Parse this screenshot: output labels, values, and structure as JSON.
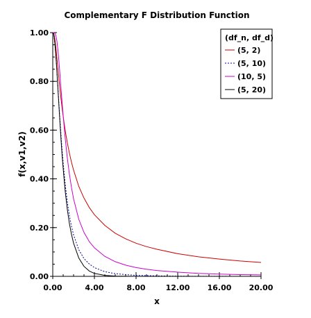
{
  "chart_data": {
    "type": "line",
    "title": "Complementary F Distribution Function",
    "xlabel": "x",
    "ylabel": "f(x,v1,v2)",
    "xlim": [
      0,
      20
    ],
    "ylim": [
      0,
      1
    ],
    "x_ticks": [
      0,
      4,
      8,
      12,
      16,
      20
    ],
    "x_tick_labels": [
      "0.00",
      "4.00",
      "8.00",
      "12.00",
      "16.00",
      "20.00"
    ],
    "y_ticks": [
      0,
      0.2,
      0.4,
      0.6,
      0.8,
      1.0
    ],
    "y_tick_labels": [
      "0.00",
      "0.20",
      "0.40",
      "0.60",
      "0.80",
      "1.00"
    ],
    "grid": false,
    "legend": {
      "title": "(df_n, df_d)",
      "placement": "top-right"
    },
    "series": [
      {
        "name": "(5, 2)",
        "color": "#cc0000",
        "dash": "solid",
        "x": [
          0,
          0.1,
          0.2,
          0.3,
          0.4,
          0.5,
          0.6,
          0.7,
          0.8,
          0.9,
          1.0,
          1.2,
          1.4,
          1.6,
          1.8,
          2.0,
          2.5,
          3.0,
          3.5,
          4.0,
          5.0,
          6.0,
          7.0,
          8.0,
          9.0,
          10.0,
          12.0,
          14.0,
          16.0,
          18.0,
          20.0
        ],
        "values": [
          1.0,
          0.996,
          0.974,
          0.938,
          0.895,
          0.85,
          0.806,
          0.765,
          0.726,
          0.69,
          0.656,
          0.597,
          0.548,
          0.505,
          0.468,
          0.436,
          0.369,
          0.321,
          0.283,
          0.253,
          0.209,
          0.177,
          0.154,
          0.136,
          0.122,
          0.111,
          0.093,
          0.08,
          0.071,
          0.063,
          0.057
        ]
      },
      {
        "name": "(5, 10)",
        "color": "#000099",
        "dash": "dotted",
        "x": [
          0,
          0.1,
          0.2,
          0.3,
          0.4,
          0.5,
          0.6,
          0.7,
          0.8,
          0.9,
          1.0,
          1.2,
          1.4,
          1.6,
          1.8,
          2.0,
          2.5,
          3.0,
          3.5,
          4.0,
          5.0,
          6.0,
          7.0,
          8.0,
          9.0,
          10.0,
          12.0,
          14.0,
          16.0,
          18.0,
          20.0
        ],
        "values": [
          1.0,
          0.99,
          0.956,
          0.903,
          0.84,
          0.772,
          0.703,
          0.637,
          0.575,
          0.517,
          0.465,
          0.376,
          0.305,
          0.249,
          0.205,
          0.17,
          0.109,
          0.073,
          0.051,
          0.036,
          0.019,
          0.011,
          0.007,
          0.004,
          0.003,
          0.002,
          0.0009,
          0.0004,
          0.0002,
          0.0001,
          0.0001
        ]
      },
      {
        "name": "(10, 5)",
        "color": "#cc00cc",
        "dash": "solid",
        "x": [
          0,
          0.1,
          0.2,
          0.3,
          0.4,
          0.5,
          0.6,
          0.7,
          0.8,
          0.9,
          1.0,
          1.2,
          1.4,
          1.6,
          1.8,
          2.0,
          2.5,
          3.0,
          3.5,
          4.0,
          5.0,
          6.0,
          7.0,
          8.0,
          9.0,
          10.0,
          12.0,
          14.0,
          16.0,
          18.0,
          20.0
        ],
        "values": [
          1.0,
          1.0,
          0.998,
          0.988,
          0.965,
          0.927,
          0.878,
          0.824,
          0.767,
          0.712,
          0.66,
          0.565,
          0.485,
          0.419,
          0.364,
          0.318,
          0.234,
          0.18,
          0.143,
          0.117,
          0.082,
          0.06,
          0.046,
          0.036,
          0.029,
          0.024,
          0.017,
          0.012,
          0.009,
          0.007,
          0.006
        ]
      },
      {
        "name": "(5, 20)",
        "color": "#000000",
        "dash": "solid",
        "x": [
          0,
          0.1,
          0.2,
          0.3,
          0.4,
          0.5,
          0.6,
          0.7,
          0.8,
          0.9,
          1.0,
          1.2,
          1.4,
          1.6,
          1.8,
          2.0,
          2.5,
          3.0,
          3.5,
          4.0,
          5.0,
          6.0,
          7.0,
          8.0,
          9.0,
          10.0,
          12.0,
          14.0,
          16.0,
          18.0,
          20.0
        ],
        "values": [
          1.0,
          0.992,
          0.958,
          0.904,
          0.838,
          0.766,
          0.694,
          0.624,
          0.557,
          0.495,
          0.443,
          0.347,
          0.274,
          0.216,
          0.172,
          0.136,
          0.075,
          0.041,
          0.022,
          0.012,
          0.004,
          0.001,
          0.0004,
          0.0001,
          0.0,
          0.0,
          0.0,
          0.0,
          0.0,
          0.0,
          0.0
        ]
      }
    ]
  }
}
